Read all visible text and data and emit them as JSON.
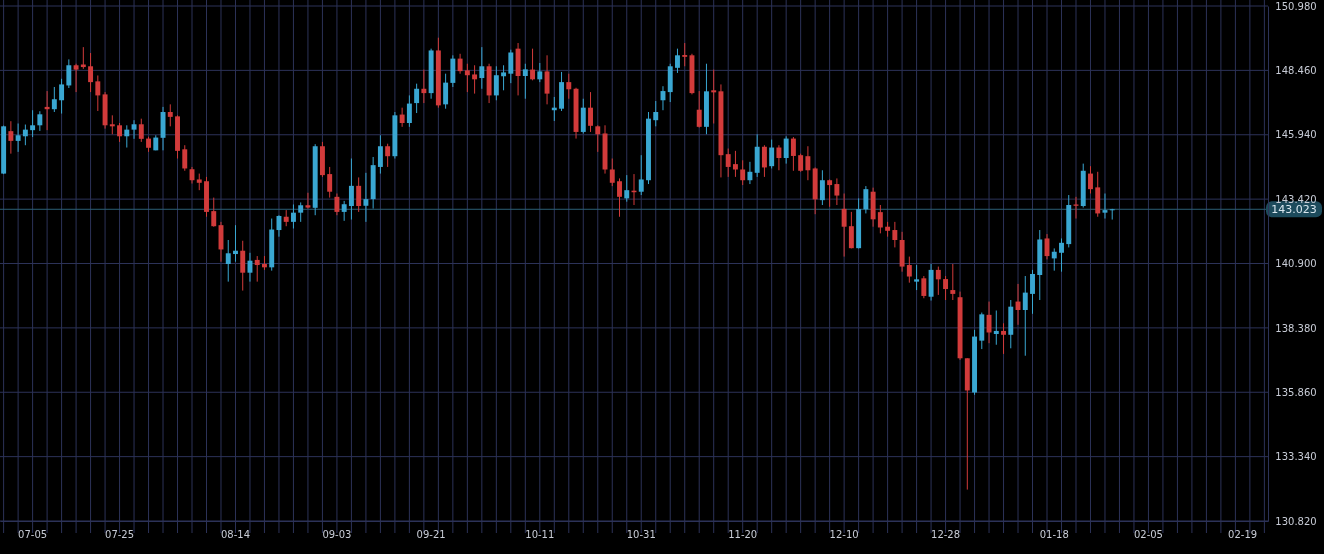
{
  "chart_data": {
    "type": "candlestick",
    "categories": [
      null,
      null,
      null,
      null,
      "07-05",
      null,
      null,
      null,
      null,
      null,
      null,
      null,
      null,
      null,
      null,
      null,
      "07-25",
      null,
      null,
      null,
      null,
      null,
      null,
      null,
      null,
      null,
      null,
      null,
      null,
      null,
      null,
      null,
      "08-14",
      null,
      null,
      null,
      null,
      null,
      null,
      null,
      null,
      null,
      null,
      null,
      null,
      null,
      "09-03",
      null,
      null,
      null,
      null,
      null,
      null,
      null,
      null,
      null,
      null,
      null,
      null,
      "09-21",
      null,
      null,
      null,
      null,
      null,
      null,
      null,
      null,
      null,
      null,
      null,
      null,
      null,
      null,
      "10-11",
      null,
      null,
      null,
      null,
      null,
      null,
      null,
      null,
      null,
      null,
      null,
      null,
      null,
      "10-31",
      null,
      null,
      null,
      null,
      null,
      null,
      null,
      null,
      null,
      null,
      null,
      null,
      null,
      "11-20",
      null,
      null,
      null,
      null,
      null,
      null,
      null,
      null,
      null,
      null,
      null,
      null,
      null,
      "12-10",
      null,
      null,
      null,
      null,
      null,
      null,
      null,
      null,
      null,
      null,
      null,
      null,
      null,
      "12-28",
      null,
      null,
      null,
      null,
      null,
      null,
      null,
      null,
      null,
      null,
      null,
      null,
      null,
      null,
      "01-18",
      null,
      null,
      null,
      null,
      null,
      null,
      null,
      null,
      null,
      null,
      null,
      null,
      "02-05",
      null,
      null,
      null,
      null,
      null,
      null,
      null,
      null,
      null,
      null,
      null,
      null,
      "02-19",
      null,
      null,
      null
    ],
    "ohlc": [
      [
        144.42,
        146.3,
        144.4,
        146.27
      ],
      [
        146.08,
        146.47,
        145.2,
        145.7
      ],
      [
        145.7,
        146.38,
        145.27,
        145.92
      ],
      [
        145.88,
        146.34,
        145.53,
        146.14
      ],
      [
        146.12,
        146.9,
        145.85,
        146.31
      ],
      [
        146.31,
        146.86,
        146.09,
        146.74
      ],
      [
        147.03,
        147.65,
        146.12,
        146.94
      ],
      [
        146.94,
        147.81,
        146.83,
        147.33
      ],
      [
        147.29,
        148.13,
        146.77,
        147.91
      ],
      [
        147.87,
        148.89,
        147.77,
        148.66
      ],
      [
        148.66,
        148.72,
        147.61,
        148.49
      ],
      [
        148.69,
        149.37,
        148.52,
        148.59
      ],
      [
        148.62,
        149.14,
        147.61,
        148.0
      ],
      [
        148.03,
        148.26,
        146.87,
        147.48
      ],
      [
        147.52,
        147.61,
        146.18,
        146.31
      ],
      [
        146.35,
        146.7,
        145.96,
        146.27
      ],
      [
        146.31,
        146.4,
        145.66,
        145.88
      ],
      [
        145.88,
        146.31,
        145.44,
        146.14
      ],
      [
        146.14,
        146.51,
        145.78,
        146.35
      ],
      [
        146.35,
        146.57,
        145.66,
        145.78
      ],
      [
        145.79,
        145.86,
        145.27,
        145.43
      ],
      [
        145.33,
        145.92,
        145.33,
        145.83
      ],
      [
        145.82,
        147.03,
        145.33,
        146.83
      ],
      [
        146.83,
        147.13,
        146.27,
        146.64
      ],
      [
        146.66,
        146.7,
        145.01,
        145.31
      ],
      [
        145.37,
        145.53,
        144.53,
        144.62
      ],
      [
        144.59,
        144.68,
        144.03,
        144.16
      ],
      [
        144.19,
        144.42,
        143.77,
        144.06
      ],
      [
        144.12,
        144.29,
        142.73,
        142.92
      ],
      [
        142.95,
        143.48,
        142.34,
        142.36
      ],
      [
        142.4,
        142.53,
        140.97,
        141.45
      ],
      [
        140.88,
        141.82,
        140.19,
        141.3
      ],
      [
        141.27,
        142.4,
        140.97,
        141.4
      ],
      [
        141.4,
        141.79,
        139.84,
        140.54
      ],
      [
        140.54,
        141.32,
        140.19,
        141.01
      ],
      [
        141.04,
        141.19,
        140.19,
        140.84
      ],
      [
        140.88,
        141.19,
        140.65,
        140.75
      ],
      [
        140.75,
        142.66,
        140.62,
        142.23
      ],
      [
        142.21,
        142.79,
        141.95,
        142.76
      ],
      [
        142.73,
        142.99,
        142.36,
        142.53
      ],
      [
        142.53,
        143.21,
        142.27,
        142.89
      ],
      [
        142.89,
        143.29,
        142.53,
        143.18
      ],
      [
        143.18,
        143.67,
        143.05,
        143.09
      ],
      [
        143.08,
        145.57,
        142.79,
        145.49
      ],
      [
        145.49,
        145.66,
        144.29,
        144.36
      ],
      [
        144.4,
        144.68,
        143.48,
        143.71
      ],
      [
        143.51,
        143.64,
        142.79,
        142.92
      ],
      [
        142.92,
        143.35,
        142.57,
        143.22
      ],
      [
        143.15,
        145.01,
        142.62,
        143.94
      ],
      [
        143.94,
        144.27,
        142.92,
        143.15
      ],
      [
        143.16,
        144.45,
        142.53,
        143.42
      ],
      [
        143.42,
        145.07,
        143.05,
        144.75
      ],
      [
        144.68,
        145.92,
        144.42,
        145.49
      ],
      [
        145.49,
        145.59,
        144.68,
        145.1
      ],
      [
        145.1,
        146.83,
        145.01,
        146.7
      ],
      [
        146.73,
        147.0,
        146.25,
        146.4
      ],
      [
        146.4,
        147.48,
        146.25,
        147.16
      ],
      [
        147.18,
        147.94,
        146.79,
        147.74
      ],
      [
        147.74,
        148.49,
        147.18,
        147.57
      ],
      [
        147.57,
        149.31,
        147.35,
        149.24
      ],
      [
        149.24,
        149.74,
        147.0,
        147.09
      ],
      [
        147.13,
        148.33,
        146.96,
        147.98
      ],
      [
        147.97,
        149.05,
        147.81,
        148.92
      ],
      [
        148.92,
        149.11,
        148.33,
        148.43
      ],
      [
        148.46,
        148.72,
        147.61,
        148.27
      ],
      [
        148.3,
        148.66,
        147.55,
        148.11
      ],
      [
        148.16,
        149.37,
        147.74,
        148.62
      ],
      [
        148.62,
        148.72,
        147.18,
        147.48
      ],
      [
        147.48,
        148.62,
        147.29,
        148.27
      ],
      [
        148.23,
        148.66,
        147.68,
        148.38
      ],
      [
        148.33,
        149.27,
        147.96,
        149.16
      ],
      [
        149.31,
        149.53,
        147.48,
        148.24
      ],
      [
        148.24,
        148.72,
        147.35,
        148.5
      ],
      [
        148.49,
        149.31,
        148.07,
        148.11
      ],
      [
        148.11,
        148.75,
        148.0,
        148.42
      ],
      [
        148.42,
        149.05,
        147.13,
        147.55
      ],
      [
        146.9,
        147.42,
        146.48,
        147.0
      ],
      [
        146.96,
        148.4,
        146.87,
        148.0
      ],
      [
        148.0,
        148.33,
        147.35,
        147.72
      ],
      [
        147.74,
        147.78,
        145.79,
        146.05
      ],
      [
        146.05,
        147.35,
        145.99,
        147.0
      ],
      [
        147.0,
        147.61,
        146.05,
        146.29
      ],
      [
        146.27,
        146.31,
        145.27,
        145.96
      ],
      [
        145.99,
        146.31,
        144.42,
        144.58
      ],
      [
        144.58,
        145.01,
        143.93,
        144.06
      ],
      [
        144.12,
        144.23,
        142.73,
        143.51
      ],
      [
        143.45,
        144.36,
        143.32,
        143.77
      ],
      [
        143.75,
        144.4,
        143.19,
        143.69
      ],
      [
        143.71,
        145.14,
        143.58,
        144.19
      ],
      [
        144.16,
        146.83,
        144.01,
        146.57
      ],
      [
        146.51,
        147.26,
        146.27,
        146.83
      ],
      [
        147.29,
        147.84,
        146.9,
        147.65
      ],
      [
        147.61,
        148.72,
        147.22,
        148.62
      ],
      [
        148.56,
        149.31,
        148.36,
        149.05
      ],
      [
        149.06,
        149.53,
        148.62,
        148.99
      ],
      [
        149.05,
        149.11,
        147.52,
        147.57
      ],
      [
        146.92,
        147.65,
        146.22,
        146.25
      ],
      [
        146.25,
        148.72,
        145.96,
        147.64
      ],
      [
        147.68,
        148.49,
        146.38,
        147.6
      ],
      [
        147.64,
        147.91,
        144.27,
        145.14
      ],
      [
        145.18,
        145.4,
        144.29,
        144.68
      ],
      [
        144.79,
        145.31,
        144.29,
        144.58
      ],
      [
        144.58,
        144.94,
        143.97,
        144.16
      ],
      [
        144.16,
        144.88,
        144.01,
        144.49
      ],
      [
        144.45,
        145.96,
        144.29,
        145.47
      ],
      [
        145.47,
        145.53,
        144.29,
        144.66
      ],
      [
        144.71,
        145.75,
        144.62,
        145.44
      ],
      [
        145.44,
        145.53,
        144.55,
        145.03
      ],
      [
        145.03,
        145.88,
        144.81,
        145.79
      ],
      [
        145.79,
        145.85,
        144.53,
        145.11
      ],
      [
        145.14,
        145.2,
        144.49,
        144.53
      ],
      [
        145.1,
        145.49,
        144.16,
        144.55
      ],
      [
        144.62,
        144.66,
        142.83,
        143.41
      ],
      [
        143.38,
        144.55,
        143.19,
        144.16
      ],
      [
        144.16,
        144.19,
        143.12,
        143.97
      ],
      [
        144.01,
        144.23,
        143.19,
        143.56
      ],
      [
        143.04,
        143.64,
        141.17,
        142.34
      ],
      [
        142.36,
        142.92,
        141.49,
        141.5
      ],
      [
        141.5,
        143.45,
        141.49,
        143.03
      ],
      [
        143.02,
        143.93,
        142.86,
        143.81
      ],
      [
        143.71,
        143.87,
        142.34,
        142.63
      ],
      [
        142.91,
        143.19,
        142.08,
        142.31
      ],
      [
        142.34,
        142.53,
        141.95,
        142.18
      ],
      [
        142.21,
        142.53,
        141.53,
        141.82
      ],
      [
        141.82,
        142.14,
        140.58,
        140.78
      ],
      [
        140.84,
        141.17,
        140.15,
        140.39
      ],
      [
        140.19,
        140.84,
        139.86,
        140.28
      ],
      [
        140.32,
        140.41,
        139.54,
        139.63
      ],
      [
        139.6,
        140.88,
        139.45,
        140.65
      ],
      [
        140.65,
        140.78,
        139.67,
        140.28
      ],
      [
        140.29,
        140.41,
        139.47,
        139.9
      ],
      [
        139.86,
        140.88,
        139.47,
        139.71
      ],
      [
        139.58,
        139.8,
        137.13,
        137.19
      ],
      [
        137.19,
        137.19,
        132.05,
        135.93
      ],
      [
        135.85,
        138.3,
        135.76,
        138.04
      ],
      [
        137.88,
        138.98,
        137.55,
        138.91
      ],
      [
        138.89,
        139.41,
        137.78,
        138.2
      ],
      [
        138.14,
        139.06,
        137.72,
        138.26
      ],
      [
        138.26,
        138.56,
        137.36,
        138.11
      ],
      [
        138.11,
        139.47,
        137.58,
        139.21
      ],
      [
        139.41,
        140.1,
        138.5,
        139.08
      ],
      [
        139.08,
        140.41,
        137.29,
        139.76
      ],
      [
        139.71,
        140.65,
        138.93,
        140.49
      ],
      [
        140.45,
        142.21,
        139.47,
        141.84
      ],
      [
        141.88,
        142.05,
        141.06,
        141.19
      ],
      [
        141.1,
        141.49,
        140.62,
        141.36
      ],
      [
        141.32,
        141.88,
        140.58,
        141.71
      ],
      [
        141.66,
        143.58,
        141.53,
        143.19
      ],
      [
        143.21,
        143.51,
        142.66,
        143.16
      ],
      [
        143.15,
        144.81,
        143.09,
        144.53
      ],
      [
        144.42,
        144.71,
        143.64,
        143.81
      ],
      [
        143.88,
        144.49,
        142.73,
        142.86
      ],
      [
        142.89,
        143.64,
        142.66,
        142.99
      ],
      [
        142.99,
        143.04,
        142.62,
        143.023
      ],
      null,
      null,
      null,
      null,
      null,
      null,
      null,
      null,
      null,
      null,
      null,
      null,
      null,
      null,
      null,
      null,
      null,
      null,
      null,
      null,
      null
    ],
    "colors": [
      "#3aa7d2",
      "#d23b3b",
      "#3aa7d2",
      "#3aa7d2",
      "#3aa7d2",
      "#3aa7d2",
      "#d23b3b",
      "#3aa7d2",
      "#3aa7d2",
      "#3aa7d2",
      "#d23b3b",
      "#d23b3b",
      "#d23b3b",
      "#d23b3b",
      "#d23b3b",
      "#d23b3b",
      "#d23b3b",
      "#3aa7d2",
      "#3aa7d2",
      "#d23b3b",
      "#d23b3b",
      "#3aa7d2",
      "#3aa7d2",
      "#d23b3b",
      "#d23b3b",
      "#d23b3b",
      "#d23b3b",
      "#d23b3b",
      "#d23b3b",
      "#d23b3b",
      "#d23b3b",
      "#3aa7d2",
      "#3aa7d2",
      "#d23b3b",
      "#3aa7d2",
      "#d23b3b",
      "#d23b3b",
      "#3aa7d2",
      "#3aa7d2",
      "#d23b3b",
      "#3aa7d2",
      "#3aa7d2",
      "#d23b3b",
      "#3aa7d2",
      "#d23b3b",
      "#d23b3b",
      "#d23b3b",
      "#3aa7d2",
      "#3aa7d2",
      "#d23b3b",
      "#3aa7d2",
      "#3aa7d2",
      "#3aa7d2",
      "#d23b3b",
      "#3aa7d2",
      "#d23b3b",
      "#3aa7d2",
      "#3aa7d2",
      "#d23b3b",
      "#3aa7d2",
      "#d23b3b",
      "#3aa7d2",
      "#3aa7d2",
      "#d23b3b",
      "#d23b3b",
      "#d23b3b",
      "#3aa7d2",
      "#d23b3b",
      "#3aa7d2",
      "#3aa7d2",
      "#3aa7d2",
      "#d23b3b",
      "#3aa7d2",
      "#d23b3b",
      "#3aa7d2",
      "#d23b3b",
      "#3aa7d2",
      "#3aa7d2",
      "#d23b3b",
      "#d23b3b",
      "#3aa7d2",
      "#d23b3b",
      "#d23b3b",
      "#d23b3b",
      "#d23b3b",
      "#d23b3b",
      "#3aa7d2",
      "#d23b3b",
      "#3aa7d2",
      "#3aa7d2",
      "#3aa7d2",
      "#3aa7d2",
      "#3aa7d2",
      "#3aa7d2",
      "#d23b3b",
      "#d23b3b",
      "#d23b3b",
      "#3aa7d2",
      "#d23b3b",
      "#d23b3b",
      "#d23b3b",
      "#d23b3b",
      "#d23b3b",
      "#3aa7d2",
      "#3aa7d2",
      "#d23b3b",
      "#3aa7d2",
      "#d23b3b",
      "#3aa7d2",
      "#d23b3b",
      "#d23b3b",
      "#d23b3b",
      "#d23b3b",
      "#3aa7d2",
      "#d23b3b",
      "#d23b3b",
      "#d23b3b",
      "#d23b3b",
      "#3aa7d2",
      "#3aa7d2",
      "#d23b3b",
      "#d23b3b",
      "#d23b3b",
      "#d23b3b",
      "#d23b3b",
      "#d23b3b",
      "#3aa7d2",
      "#d23b3b",
      "#3aa7d2",
      "#d23b3b",
      "#d23b3b",
      "#d23b3b",
      "#d23b3b",
      "#d23b3b",
      "#3aa7d2",
      "#3aa7d2",
      "#d23b3b",
      "#3aa7d2",
      "#d23b3b",
      "#3aa7d2",
      "#d23b3b",
      "#3aa7d2",
      "#3aa7d2",
      "#3aa7d2",
      "#d23b3b",
      "#3aa7d2",
      "#3aa7d2",
      "#3aa7d2",
      "#d23b3b",
      "#3aa7d2",
      "#d23b3b",
      "#d23b3b",
      "#3aa7d2",
      "#3aa7d2",
      null,
      null,
      null,
      null,
      null,
      null,
      null,
      null,
      null,
      null,
      null,
      null,
      null,
      null,
      null,
      null,
      null,
      null,
      null,
      null,
      null
    ],
    "ylim": [
      130.82,
      150.98
    ],
    "yticks": [
      {
        "value": 130.82,
        "label": "130.820"
      },
      {
        "value": 133.34,
        "label": "133.340"
      },
      {
        "value": 135.86,
        "label": "135.860"
      },
      {
        "value": 138.38,
        "label": "138.380"
      },
      {
        "value": 140.9,
        "label": "140.900"
      },
      {
        "value": 143.42,
        "label": "143.420"
      },
      {
        "value": 145.94,
        "label": "145.940"
      },
      {
        "value": 148.46,
        "label": "148.460"
      },
      {
        "value": 150.98,
        "label": "150.980"
      }
    ],
    "grid": true,
    "ref_lines": [
      {
        "axis": "y",
        "value": 143.023,
        "label": "143.023",
        "color": "#2b5f75"
      }
    ]
  }
}
